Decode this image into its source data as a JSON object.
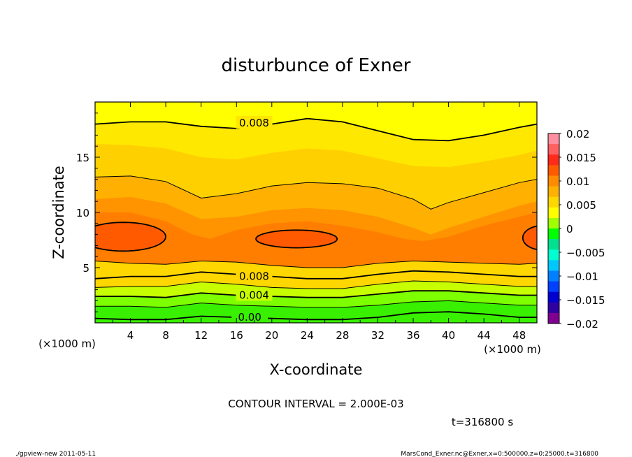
{
  "chart_data": {
    "type": "contour",
    "title": "disturbunce of Exner",
    "xlabel": "X-coordinate",
    "ylabel": "Z-coordinate",
    "x_unit_label": "(×1000 m)",
    "y_unit_label": "(×1000 m)",
    "xlim": [
      0,
      50
    ],
    "ylim": [
      0,
      20
    ],
    "x_ticks": [
      "4",
      "8",
      "12",
      "16",
      "20",
      "24",
      "28",
      "32",
      "36",
      "40",
      "44",
      "48"
    ],
    "x_tick_values": [
      4,
      8,
      12,
      16,
      20,
      24,
      28,
      32,
      36,
      40,
      44,
      48
    ],
    "y_ticks": [
      "5",
      "10",
      "15"
    ],
    "y_tick_values": [
      5,
      10,
      15
    ],
    "contour_labels": [
      {
        "text": "0.008",
        "x": 18,
        "z": 18.1
      },
      {
        "text": "0.008",
        "x": 18,
        "z": 4.2
      },
      {
        "text": "0.004",
        "x": 18,
        "z": 2.5
      },
      {
        "text": "0.00",
        "x": 17.5,
        "z": 0.5
      }
    ],
    "contour_interval_text": "CONTOUR INTERVAL = 2.000E-03",
    "colorbar": {
      "labels": [
        "0.02",
        "0.015",
        "0.01",
        "0.005",
        "0",
        "−0.005",
        "−0.01",
        "−0.015",
        "−0.02"
      ],
      "values": [
        0.02,
        0.015,
        0.01,
        0.005,
        0,
        -0.005,
        -0.01,
        -0.015,
        -0.02
      ],
      "colors": [
        "#ff8fa0",
        "#ff6060",
        "#ff2a1a",
        "#ff5a00",
        "#ff8c00",
        "#ffb000",
        "#ffd700",
        "#ffff00",
        "#a0ff00",
        "#00ff00",
        "#00e090",
        "#00ffd0",
        "#00c8ff",
        "#0080ff",
        "#0040ff",
        "#0000d0",
        "#3000a0",
        "#800090"
      ]
    },
    "field_colors": {
      "top_yellow": "#ffff00",
      "yellow2": "#ffe800",
      "yellow_orange": "#ffd000",
      "orange1": "#ffb000",
      "orange2": "#ff9300",
      "orange3": "#ff7e00",
      "red_orange": "#ff5a00",
      "bottom_yellow": "#ffd700",
      "lime": "#c8ff00",
      "green": "#7dff00",
      "bright_green": "#38f000"
    }
  },
  "footer": {
    "time": "t=316800 s",
    "left": "./gpview-new   2011-05-11",
    "right": "MarsCond_Exner.nc@Exner,x=0:500000,z=0:25000,t=316800"
  }
}
